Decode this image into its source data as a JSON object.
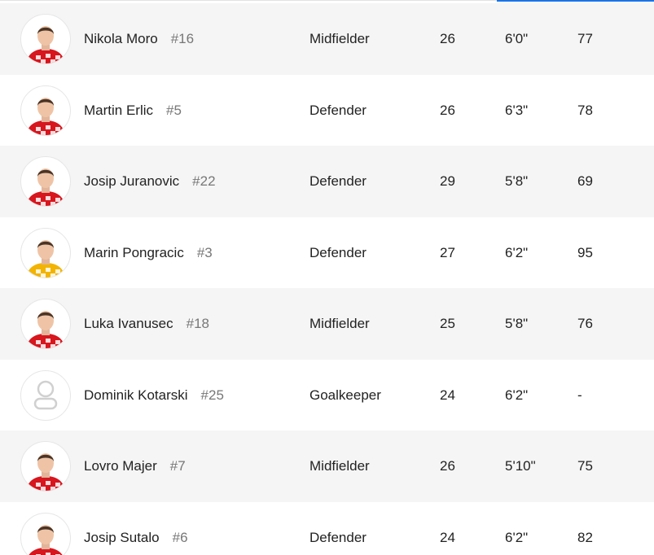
{
  "colors": {
    "accent": "#1a73e8",
    "row_alt": "#f5f5f5",
    "text": "#222222",
    "muted": "#777777",
    "kit_red": "#d7161e",
    "kit_alt": "#f2b400"
  },
  "players": [
    {
      "name": "Nikola Moro",
      "number": "#16",
      "position": "Midfielder",
      "age": "26",
      "height": "6'0\"",
      "weight": "77",
      "avatar": "player-photo",
      "kit": "red"
    },
    {
      "name": "Martin Erlic",
      "number": "#5",
      "position": "Defender",
      "age": "26",
      "height": "6'3\"",
      "weight": "78",
      "avatar": "player-photo",
      "kit": "red"
    },
    {
      "name": "Josip Juranovic",
      "number": "#22",
      "position": "Defender",
      "age": "29",
      "height": "5'8\"",
      "weight": "69",
      "avatar": "player-photo",
      "kit": "red"
    },
    {
      "name": "Marin Pongracic",
      "number": "#3",
      "position": "Defender",
      "age": "27",
      "height": "6'2\"",
      "weight": "95",
      "avatar": "player-photo",
      "kit": "yellow-red"
    },
    {
      "name": "Luka Ivanusec",
      "number": "#18",
      "position": "Midfielder",
      "age": "25",
      "height": "5'8\"",
      "weight": "76",
      "avatar": "player-photo",
      "kit": "red"
    },
    {
      "name": "Dominik Kotarski",
      "number": "#25",
      "position": "Goalkeeper",
      "age": "24",
      "height": "6'2\"",
      "weight": "-",
      "avatar": "placeholder-avatar-icon",
      "kit": "none"
    },
    {
      "name": "Lovro Majer",
      "number": "#7",
      "position": "Midfielder",
      "age": "26",
      "height": "5'10\"",
      "weight": "75",
      "avatar": "player-photo",
      "kit": "red"
    },
    {
      "name": "Josip Sutalo",
      "number": "#6",
      "position": "Defender",
      "age": "24",
      "height": "6'2\"",
      "weight": "82",
      "avatar": "player-photo",
      "kit": "red"
    }
  ]
}
